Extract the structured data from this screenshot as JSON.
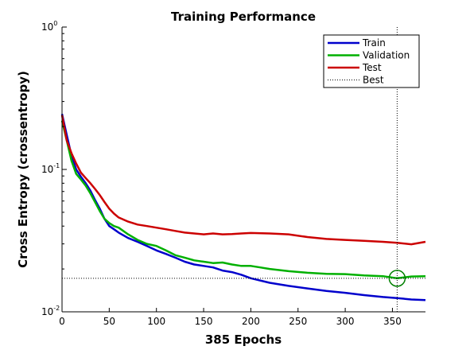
{
  "chart_data": {
    "type": "line",
    "title": "Training Performance",
    "xlabel": "385 Epochs",
    "ylabel": "Cross Entropy  (crossentropy)",
    "xlim": [
      0,
      385
    ],
    "ylim": [
      0.01,
      1
    ],
    "yscale": "log",
    "xticks": [
      0,
      50,
      100,
      150,
      200,
      250,
      300,
      350
    ],
    "yticks": [
      {
        "value": 0.01,
        "base": "10",
        "exp": "-2"
      },
      {
        "value": 0.1,
        "base": "10",
        "exp": "-1"
      },
      {
        "value": 1,
        "base": "10",
        "exp": "0"
      }
    ],
    "legend_position": "top-right",
    "best_epoch": 355,
    "best_value": 0.0172,
    "series": [
      {
        "name": "Train",
        "color": "#0000cc",
        "x": [
          0,
          5,
          10,
          15,
          20,
          25,
          30,
          35,
          40,
          45,
          50,
          55,
          60,
          70,
          80,
          90,
          100,
          110,
          120,
          130,
          140,
          150,
          160,
          170,
          180,
          190,
          200,
          220,
          240,
          260,
          280,
          300,
          320,
          340,
          355,
          370,
          385
        ],
        "y": [
          0.245,
          0.175,
          0.125,
          0.1,
          0.089,
          0.08,
          0.071,
          0.061,
          0.053,
          0.045,
          0.04,
          0.038,
          0.036,
          0.033,
          0.031,
          0.029,
          0.027,
          0.0255,
          0.024,
          0.0225,
          0.0215,
          0.021,
          0.0205,
          0.0195,
          0.019,
          0.0182,
          0.0172,
          0.016,
          0.0152,
          0.0146,
          0.014,
          0.0136,
          0.0131,
          0.0127,
          0.0125,
          0.0122,
          0.0121
        ]
      },
      {
        "name": "Validation",
        "color": "#00b000",
        "x": [
          0,
          5,
          10,
          15,
          20,
          25,
          30,
          35,
          40,
          45,
          50,
          55,
          60,
          70,
          80,
          90,
          100,
          110,
          120,
          130,
          140,
          150,
          160,
          170,
          180,
          190,
          200,
          210,
          220,
          240,
          260,
          280,
          300,
          320,
          340,
          355,
          370,
          385
        ],
        "y": [
          0.22,
          0.16,
          0.115,
          0.093,
          0.085,
          0.077,
          0.068,
          0.059,
          0.051,
          0.045,
          0.042,
          0.04,
          0.039,
          0.035,
          0.032,
          0.03,
          0.029,
          0.027,
          0.025,
          0.024,
          0.023,
          0.0225,
          0.022,
          0.0222,
          0.0215,
          0.021,
          0.021,
          0.0205,
          0.02,
          0.0193,
          0.0188,
          0.0185,
          0.0184,
          0.018,
          0.0178,
          0.0172,
          0.0177,
          0.0178
        ]
      },
      {
        "name": "Test",
        "color": "#cc0000",
        "x": [
          0,
          5,
          10,
          15,
          20,
          25,
          30,
          35,
          40,
          45,
          50,
          55,
          60,
          70,
          80,
          90,
          100,
          110,
          120,
          130,
          140,
          150,
          160,
          170,
          180,
          190,
          200,
          220,
          240,
          260,
          280,
          300,
          320,
          340,
          355,
          370,
          385
        ],
        "y": [
          0.24,
          0.16,
          0.13,
          0.11,
          0.095,
          0.087,
          0.08,
          0.073,
          0.066,
          0.059,
          0.053,
          0.049,
          0.046,
          0.043,
          0.041,
          0.04,
          0.039,
          0.038,
          0.037,
          0.036,
          0.0355,
          0.035,
          0.0355,
          0.035,
          0.0352,
          0.0355,
          0.0358,
          0.0355,
          0.035,
          0.0335,
          0.0325,
          0.032,
          0.0315,
          0.031,
          0.0305,
          0.0298,
          0.031
        ]
      },
      {
        "name": "Best",
        "color": "#000000",
        "style": "dotted"
      }
    ]
  }
}
